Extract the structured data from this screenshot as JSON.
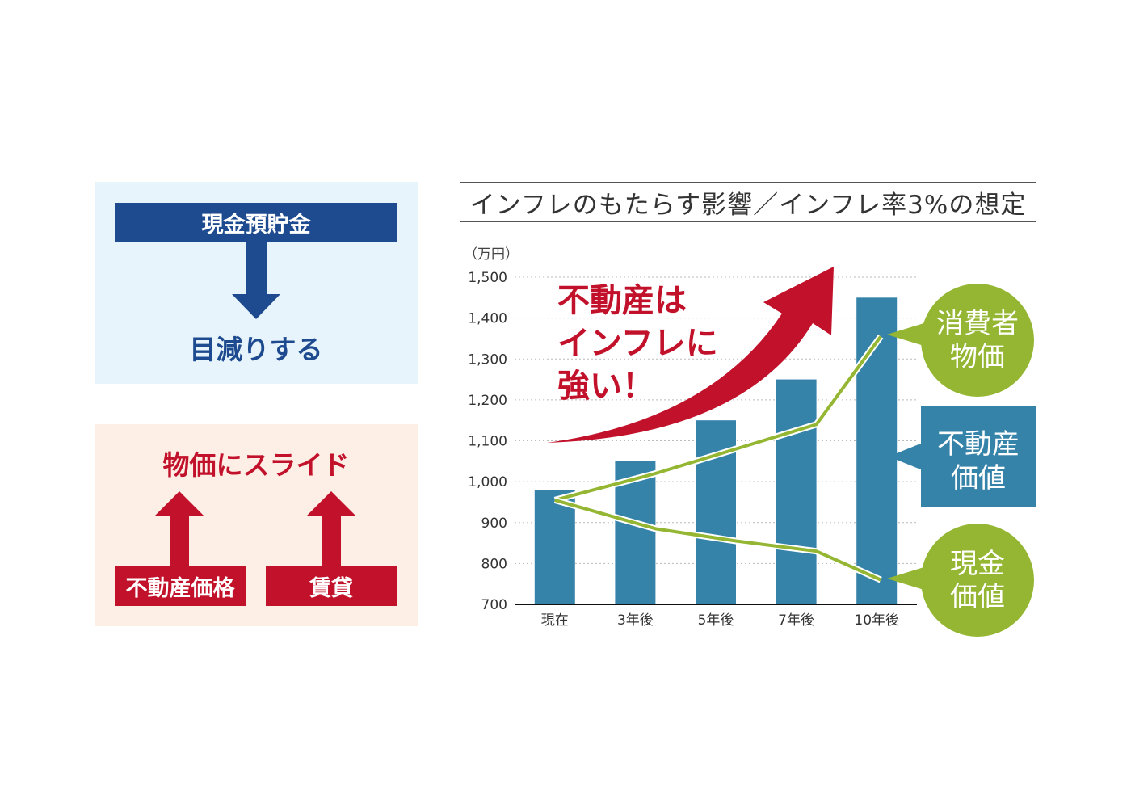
{
  "left_top": {
    "bar_label": "現金預貯金",
    "result": "目減りする"
  },
  "left_bottom": {
    "result": "物価にスライド",
    "box1": "不動産価格",
    "box2": "賃貸"
  },
  "colors": {
    "blue": "#1e4b8f",
    "red": "#c2112a",
    "bar": "#3683aa",
    "green": "#94b632"
  },
  "chart_data": {
    "type": "bar",
    "title": "インフレのもたらす影響／インフレ率3%の想定",
    "unit_label": "（万円）",
    "categories": [
      "現在",
      "3年後",
      "5年後",
      "7年後",
      "10年後"
    ],
    "ylim": [
      700,
      1500
    ],
    "yticks": [
      "700",
      "800",
      "900",
      "1,000",
      "1,100",
      "1,200",
      "1,300",
      "1,400",
      "1,500"
    ],
    "ytick_values": [
      700,
      800,
      900,
      1000,
      1100,
      1200,
      1300,
      1400,
      1500
    ],
    "grid": true,
    "series": [
      {
        "name": "不動産価値",
        "type": "bar",
        "values": [
          980,
          1050,
          1150,
          1250,
          1450
        ]
      },
      {
        "name": "消費者物価",
        "type": "line",
        "values": [
          955,
          1020,
          1080,
          1140,
          1355
        ]
      },
      {
        "name": "現金価値",
        "type": "line",
        "values": [
          955,
          885,
          855,
          830,
          760
        ]
      }
    ],
    "callout_text": [
      "不動産は",
      "インフレに",
      "強い！"
    ],
    "labels": {
      "consumer": [
        "消費者",
        "物価"
      ],
      "realestate": [
        "不動産",
        "価値"
      ],
      "cash": [
        "現金",
        "価値"
      ]
    }
  }
}
